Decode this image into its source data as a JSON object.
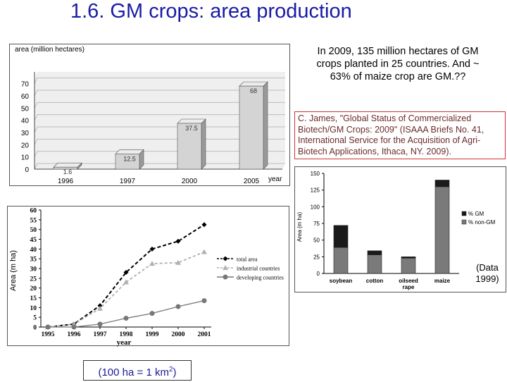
{
  "title": "1.6. GM crops: area production",
  "note": "In 2009, 135 million hectares of GM crops planted in 25 countries. And ~ 63% of maize crop are GM.??",
  "citation": "C. James, \"Global Status of Commercialized Biotech/GM Crops: 2009\" (ISAAA Briefs No. 41, International Service for the Acquisition of Agri-Biotech Applications, Ithaca, NY. 2009).",
  "data_note": "(Data 1999)",
  "unit_note": {
    "prefix": "(100 ha = 1 km",
    "sup": "2",
    "suffix": ")"
  },
  "chart_data": [
    {
      "type": "bar",
      "title": "",
      "ylabel": "area (million hectares)",
      "xlabel": "year",
      "categories": [
        "1996",
        "1997",
        "2000",
        "2005"
      ],
      "values": [
        1.6,
        12.5,
        37.5,
        68
      ],
      "value_labels": [
        "1.6",
        "12.5",
        "37.5",
        "68"
      ],
      "yticks": [
        "0",
        "10",
        "20",
        "30",
        "40",
        "50",
        "60",
        "70"
      ],
      "ylim": [
        0,
        75
      ],
      "colors": {
        "bar": "#d4d4d4",
        "bar_side": "#9a9a9a"
      }
    },
    {
      "type": "line",
      "ylabel": "Area (m ha)",
      "xlabel": "year",
      "x": [
        "1995",
        "1996",
        "1997",
        "1998",
        "1999",
        "2000",
        "2001"
      ],
      "yticks": [
        "0",
        "5",
        "10",
        "15",
        "20",
        "25",
        "30",
        "35",
        "40",
        "45",
        "50",
        "55",
        "60"
      ],
      "ylim": [
        0,
        60
      ],
      "series": [
        {
          "name": "total area",
          "values": [
            0,
            1.5,
            11,
            28,
            40,
            44,
            52.5
          ],
          "color": "#000000",
          "marker": "diamond"
        },
        {
          "name": "industrial countries",
          "values": [
            0,
            1.5,
            9.5,
            23,
            32.5,
            33,
            38.5
          ],
          "color": "#b0b0b0",
          "marker": "triangle"
        },
        {
          "name": "developing countries",
          "values": [
            0,
            0,
            1.5,
            4.5,
            7,
            10.5,
            13.5
          ],
          "color": "#777777",
          "marker": "circle"
        }
      ]
    },
    {
      "type": "bar",
      "stacked": true,
      "ylabel": "Area (m ha)",
      "categories": [
        "soybean",
        "cotton",
        "oilseed rape",
        "maize"
      ],
      "yticks": [
        "0",
        "25",
        "50",
        "75",
        "100",
        "125",
        "150"
      ],
      "ylim": [
        0,
        150
      ],
      "series": [
        {
          "name": "% non-GM",
          "values": [
            39,
            28,
            23,
            130
          ],
          "color": "#7a7a7a"
        },
        {
          "name": "% GM",
          "values": [
            33,
            6,
            2,
            10
          ],
          "color": "#1a1a1a"
        }
      ]
    }
  ]
}
